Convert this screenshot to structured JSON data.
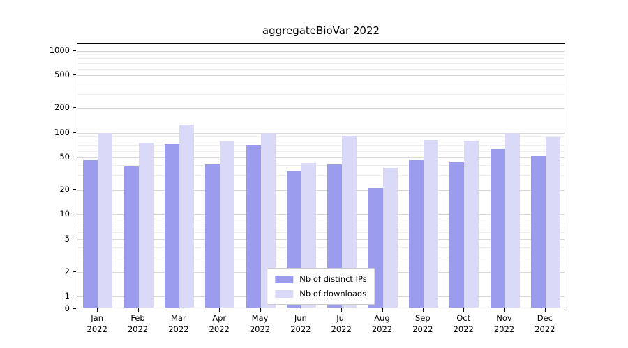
{
  "chart_data": {
    "type": "bar",
    "title": "aggregateBioVar 2022",
    "categories": [
      "Jan 2022",
      "Feb 2022",
      "Mar 2022",
      "Apr 2022",
      "May 2022",
      "Jun 2022",
      "Jul 2022",
      "Aug 2022",
      "Sep 2022",
      "Oct 2022",
      "Nov 2022",
      "Dec 2022"
    ],
    "series": [
      {
        "name": "Nb of distinct IPs",
        "color": "#9c9cee",
        "values": [
          46,
          39,
          72,
          41,
          70,
          34,
          41,
          21,
          46,
          44,
          63,
          52
        ]
      },
      {
        "name": "Nb of downloads",
        "color": "#dadaf8",
        "values": [
          100,
          75,
          125,
          79,
          100,
          43,
          92,
          37,
          82,
          80,
          100,
          89
        ]
      }
    ],
    "yscale": "symlog",
    "yticks": [
      0,
      1,
      2,
      5,
      10,
      20,
      50,
      100,
      200,
      500,
      1000
    ],
    "ylim": [
      0,
      1000
    ],
    "xlabel": "",
    "ylabel": "",
    "grid": true,
    "legend_position": "lower center"
  }
}
